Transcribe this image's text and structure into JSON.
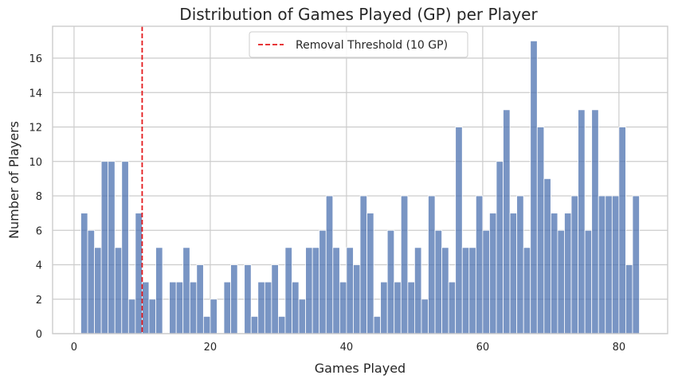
{
  "chart_data": {
    "type": "bar",
    "title": "Distribution of Games Played (GP) per Player",
    "xlabel": "Games Played",
    "ylabel": "Number of Players",
    "xlim": [
      -3.15,
      87.15
    ],
    "ylim": [
      0,
      17.85
    ],
    "xticks": [
      0,
      20,
      40,
      60,
      80
    ],
    "yticks": [
      0,
      2,
      4,
      6,
      8,
      10,
      12,
      14,
      16
    ],
    "grid": true,
    "bin_width": 1,
    "x": [
      1,
      2,
      3,
      4,
      5,
      6,
      7,
      8,
      9,
      10,
      11,
      12,
      13,
      14,
      15,
      16,
      17,
      18,
      19,
      20,
      21,
      22,
      23,
      24,
      25,
      26,
      27,
      28,
      29,
      30,
      31,
      32,
      33,
      34,
      35,
      36,
      37,
      38,
      39,
      40,
      41,
      42,
      43,
      44,
      45,
      46,
      47,
      48,
      49,
      50,
      51,
      52,
      53,
      54,
      55,
      56,
      57,
      58,
      59,
      60,
      61,
      62,
      63,
      64,
      65,
      66,
      67,
      68,
      69,
      70,
      71,
      72,
      73,
      74,
      75,
      76,
      77,
      78,
      79,
      80,
      81,
      82
    ],
    "values": [
      7,
      6,
      5,
      10,
      10,
      5,
      10,
      2,
      7,
      3,
      2,
      5,
      0,
      3,
      3,
      5,
      3,
      4,
      1,
      2,
      0,
      3,
      4,
      0,
      4,
      1,
      3,
      3,
      4,
      1,
      5,
      3,
      2,
      5,
      5,
      6,
      8,
      5,
      3,
      5,
      4,
      8,
      7,
      1,
      3,
      6,
      3,
      8,
      3,
      5,
      2,
      8,
      6,
      5,
      3,
      12,
      5,
      5,
      8,
      6,
      7,
      10,
      13,
      7,
      8,
      5,
      17,
      12,
      9,
      7,
      6,
      7,
      8,
      13,
      6,
      13,
      8,
      8,
      8,
      12,
      4,
      8
    ],
    "threshold": {
      "x": 10,
      "label": "Removal Threshold (10 GP)",
      "color": "#e41a1c"
    },
    "legend": "upper center",
    "colors": {
      "bar": "#4c72b0",
      "grid": "#cccccc",
      "axes": "#cccccc"
    }
  }
}
